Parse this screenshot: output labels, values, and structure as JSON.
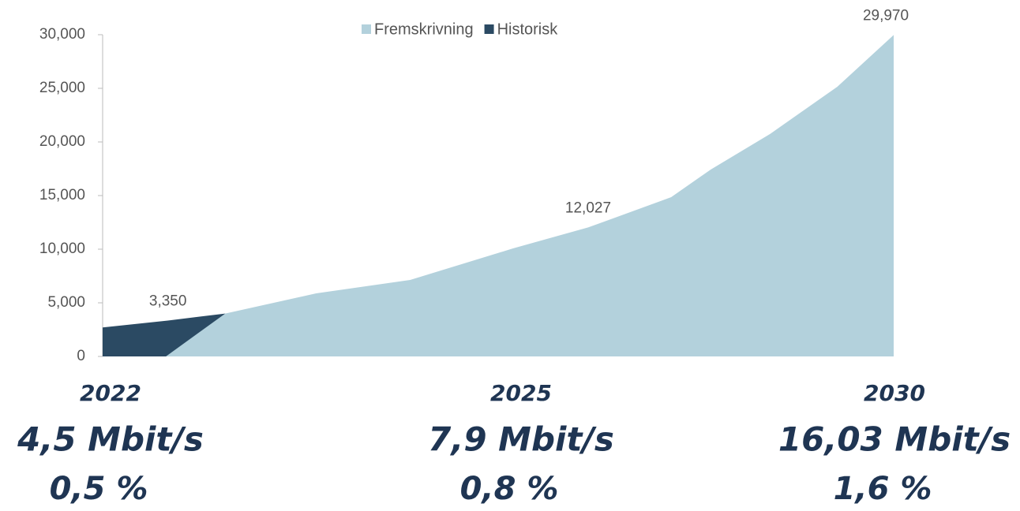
{
  "chart_data": {
    "type": "area",
    "series": [
      {
        "name": "Historisk",
        "color": "#2b4a63",
        "x": [
          2022.0,
          2022.66,
          2023.24
        ],
        "values": [
          2700,
          3350,
          4000
        ],
        "value_labels": [
          null,
          "3,350",
          null
        ]
      },
      {
        "name": "Fremskrivning",
        "color": "#b3d1dc",
        "x": [
          2022.64,
          2023.24,
          2024.16,
          2025.11,
          2026.15,
          2026.91,
          2027.75,
          2028.15,
          2028.75,
          2029.43,
          2030.0
        ],
        "values": [
          0,
          4000,
          5880,
          7130,
          10070,
          12027,
          14850,
          17430,
          20740,
          25150,
          29970
        ],
        "value_labels": [
          null,
          null,
          null,
          null,
          null,
          "12,027",
          null,
          null,
          null,
          null,
          "29,970"
        ]
      }
    ],
    "legend_order": [
      "Fremskrivning",
      "Historisk"
    ],
    "xlim": [
      2022,
      2030
    ],
    "ylim": [
      0,
      30000
    ],
    "yticks": [
      0,
      {
        "value": 5000,
        "label": "5,000"
      },
      {
        "value": 10000,
        "label": "10,000"
      },
      {
        "value": 15000,
        "label": "15,000"
      },
      {
        "value": 20000,
        "label": "20,000"
      },
      {
        "value": 25000,
        "label": "25,000"
      },
      {
        "value": 30000,
        "label": "30,000"
      }
    ],
    "legend": "top",
    "footer": [
      {
        "year": "2022",
        "speed": "4,5 Mbit/s",
        "share": "0,5 %"
      },
      {
        "year": "2025",
        "speed": "7,9 Mbit/s",
        "share": "0,8 %"
      },
      {
        "year": "2030",
        "speed": "16,03 Mbit/s",
        "share": "1,6 %"
      }
    ]
  }
}
